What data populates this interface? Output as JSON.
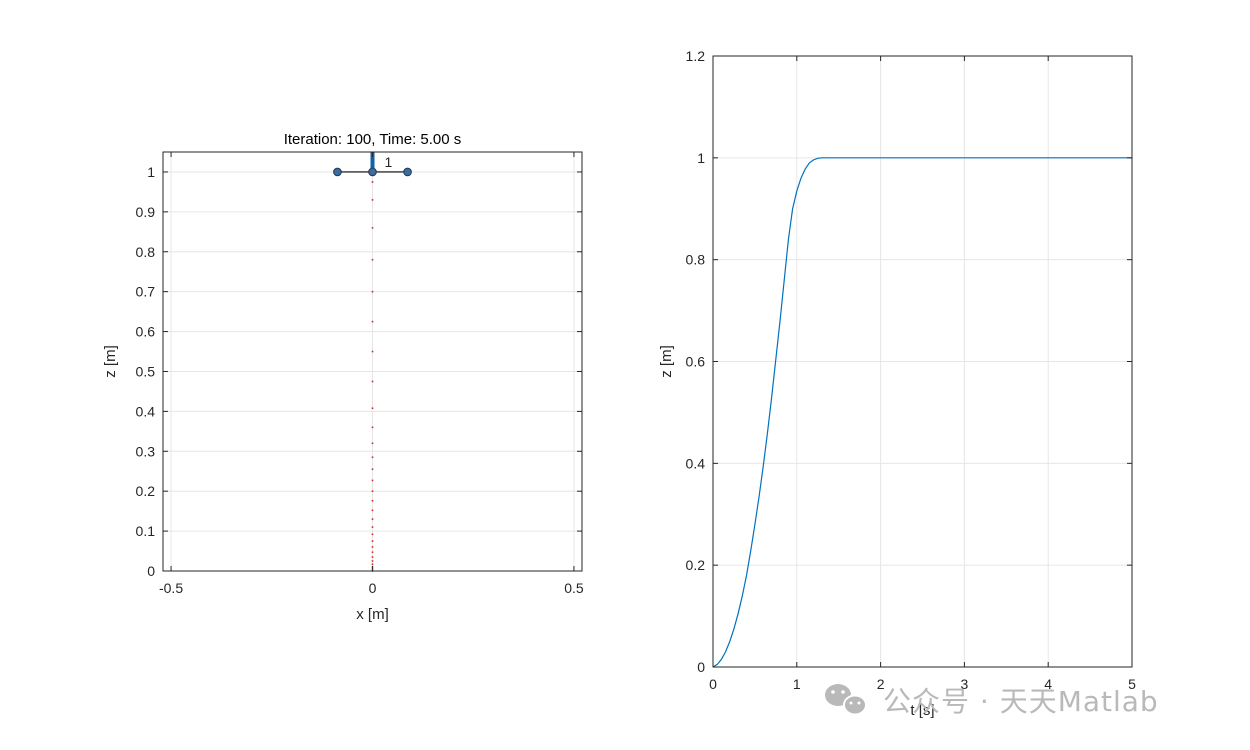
{
  "chart_data": [
    {
      "type": "scatter",
      "title": "Iteration: 100, Time: 5.00 s",
      "xlabel": "x [m]",
      "ylabel": "z [m]",
      "xlim": [
        -0.52,
        0.52
      ],
      "ylim": [
        0,
        1.05
      ],
      "xticks": [
        -0.5,
        0,
        0.5
      ],
      "xtick_labels": [
        "-0.5",
        "0",
        "0.5"
      ],
      "yticks": [
        0,
        0.1,
        0.2,
        0.3,
        0.4,
        0.5,
        0.6,
        0.7,
        0.8,
        0.9,
        1
      ],
      "ytick_labels": [
        "0",
        "0.1",
        "0.2",
        "0.3",
        "0.4",
        "0.5",
        "0.6",
        "0.7",
        "0.8",
        "0.9",
        "1"
      ],
      "grid": true,
      "trajectory": {
        "color": "#d62728",
        "x": [
          0,
          0,
          0,
          0,
          0,
          0,
          0,
          0,
          0,
          0,
          0,
          0,
          0,
          0,
          0,
          0,
          0,
          0,
          0,
          0,
          0,
          0,
          0,
          0,
          0,
          0,
          0,
          0,
          0
        ],
        "z": [
          0,
          0.005,
          0.01,
          0.017,
          0.025,
          0.035,
          0.047,
          0.06,
          0.075,
          0.092,
          0.11,
          0.13,
          0.152,
          0.176,
          0.2,
          0.227,
          0.255,
          0.285,
          0.32,
          0.36,
          0.408,
          0.475,
          0.55,
          0.625,
          0.7,
          0.78,
          0.86,
          0.93,
          0.975
        ]
      },
      "vehicle": {
        "label": "1",
        "center": [
          0,
          1
        ],
        "arm_half_length": 0.087,
        "thrust_height": 0.05,
        "arm_color": "#000000",
        "node_color": "#3d6d9e",
        "thrust_color": "#0f63a8"
      }
    },
    {
      "type": "line",
      "title": "",
      "xlabel": "t [s]",
      "ylabel": "z [m]",
      "xlim": [
        0,
        5
      ],
      "ylim": [
        0,
        1.2
      ],
      "xticks": [
        0,
        1,
        2,
        3,
        4,
        5
      ],
      "xtick_labels": [
        "0",
        "1",
        "2",
        "3",
        "4",
        "5"
      ],
      "yticks": [
        0,
        0.2,
        0.4,
        0.6,
        0.8,
        1,
        1.2
      ],
      "ytick_labels": [
        "0",
        "0.2",
        "0.4",
        "0.6",
        "0.8",
        "1",
        "1.2"
      ],
      "grid": true,
      "series": [
        {
          "color": "#0072bd",
          "x": [
            0,
            0.05,
            0.1,
            0.15,
            0.2,
            0.25,
            0.3,
            0.35,
            0.4,
            0.45,
            0.5,
            0.55,
            0.6,
            0.65,
            0.7,
            0.75,
            0.8,
            0.85,
            0.9,
            0.95,
            1.0,
            1.05,
            1.1,
            1.15,
            1.2,
            1.25,
            1.3,
            1.35,
            1.4,
            1.5,
            2,
            3,
            4,
            5
          ],
          "y": [
            0,
            0.005,
            0.015,
            0.03,
            0.05,
            0.075,
            0.105,
            0.14,
            0.18,
            0.228,
            0.28,
            0.335,
            0.395,
            0.46,
            0.53,
            0.605,
            0.68,
            0.76,
            0.84,
            0.9,
            0.935,
            0.96,
            0.978,
            0.99,
            0.996,
            0.999,
            1.0,
            1.0,
            1.0,
            1.0,
            1.0,
            1.0,
            1.0,
            1.0
          ]
        }
      ]
    }
  ],
  "watermark": {
    "icon": "wechat-icon",
    "text": "公众号 · 天天Matlab"
  }
}
